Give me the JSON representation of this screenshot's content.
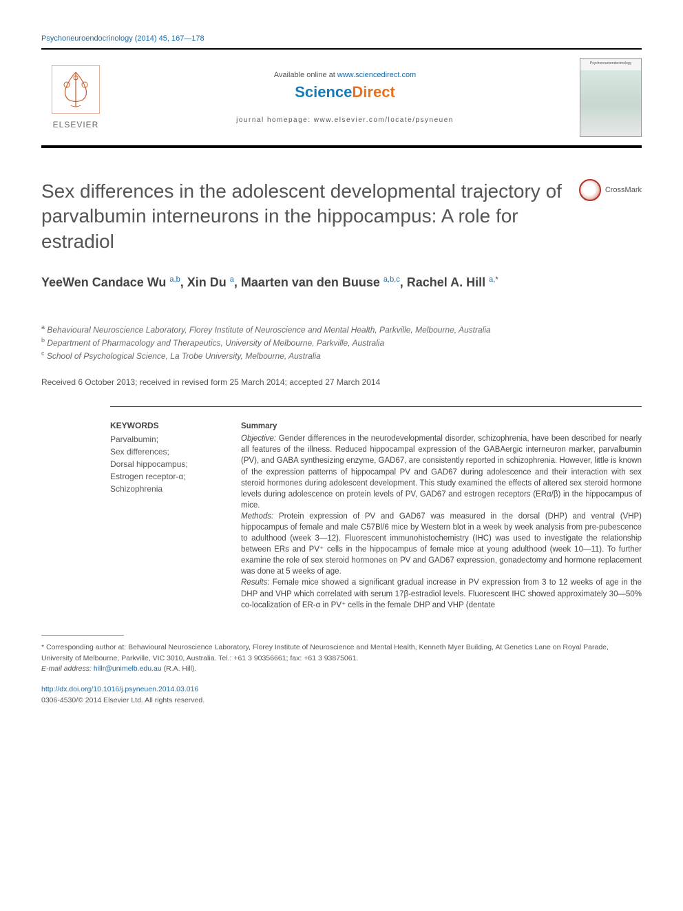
{
  "journal_ref": "Psychoneuroendocrinology (2014) 45, 167—178",
  "header": {
    "available_prefix": "Available online at ",
    "available_link": "www.sciencedirect.com",
    "sciencedirect": {
      "part1": "Science",
      "part2": "Direct"
    },
    "homepage_prefix": "journal homepage: ",
    "homepage_url": "www.elsevier.com/locate/psyneuen",
    "elsevier": "ELSEVIER",
    "cover_label": "Psychoneuroendocrinology"
  },
  "title": "Sex differences in the adolescent developmental trajectory of parvalbumin interneurons in the hippocampus: A role for estradiol",
  "crossmark_label": "CrossMark",
  "authors_html": "YeeWen Candace Wu <sup>a,b</sup>, Xin Du <sup>a</sup>, Maarten van den Buuse <sup>a,b,c</sup>, Rachel A. Hill <sup>a,</sup><sup class='sup-star'>*</sup>",
  "affiliations": [
    {
      "sup": "a",
      "text": "Behavioural Neuroscience Laboratory, Florey Institute of Neuroscience and Mental Health, Parkville, Melbourne, Australia"
    },
    {
      "sup": "b",
      "text": "Department of Pharmacology and Therapeutics, University of Melbourne, Parkville, Australia"
    },
    {
      "sup": "c",
      "text": "School of Psychological Science, La Trobe University, Melbourne, Australia"
    }
  ],
  "received": "Received 6 October 2013; received in revised form 25 March 2014; accepted 27 March 2014",
  "keywords": {
    "heading": "KEYWORDS",
    "items": [
      "Parvalbumin;",
      "Sex differences;",
      "Dorsal hippocampus;",
      "Estrogen receptor-α;",
      "Schizophrenia"
    ]
  },
  "summary": {
    "heading": "Summary",
    "objective_label": "Objective:",
    "objective": " Gender differences in the neurodevelopmental disorder, schizophrenia, have been described for nearly all features of the illness. Reduced hippocampal expression of the GABAergic interneuron marker, parvalbumin (PV), and GABA synthesizing enzyme, GAD67, are consistently reported in schizophrenia. However, little is known of the expression patterns of hippocampal PV and GAD67 during adolescence and their interaction with sex steroid hormones during adolescent development. This study examined the effects of altered sex steroid hormone levels during adolescence on protein levels of PV, GAD67 and estrogen receptors (ERα/β) in the hippocampus of mice.",
    "methods_label": "Methods:",
    "methods": " Protein expression of PV and GAD67 was measured in the dorsal (DHP) and ventral (VHP) hippocampus of female and male C57Bl/6 mice by Western blot in a week by week analysis from pre-pubescence to adulthood (week 3—12). Fluorescent immunohistochemistry (IHC) was used to investigate the relationship between ERs and PV⁺ cells in the hippocampus of female mice at young adulthood (week 10—11). To further examine the role of sex steroid hormones on PV and GAD67 expression, gonadectomy and hormone replacement was done at 5 weeks of age.",
    "results_label": "Results:",
    "results": " Female mice showed a significant gradual increase in PV expression from 3 to 12 weeks of age in the DHP and VHP which correlated with serum 17β-estradiol levels. Fluorescent IHC showed approximately 30—50% co-localization of ER-α in PV⁺ cells in the female DHP and VHP (dentate"
  },
  "footnote": {
    "corr": "* Corresponding author at: Behavioural Neuroscience Laboratory, Florey Institute of Neuroscience and Mental Health, Kenneth Myer Building, At Genetics Lane on Royal Parade, University of Melbourne, Parkville, VIC 3010, Australia. Tel.: +61 3 90356661; fax: +61 3 93875061.",
    "email_label": "E-mail address: ",
    "email": "hillr@unimelb.edu.au",
    "email_suffix": " (R.A. Hill)."
  },
  "doi": {
    "url": "http://dx.doi.org/10.1016/j.psyneuen.2014.03.016",
    "issn_line": "0306-4530/© 2014 Elsevier Ltd. All rights reserved."
  },
  "colors": {
    "link": "#1a6ca8",
    "sd_blue": "#187bb3",
    "sd_orange": "#e9711c",
    "title_gray": "#555555",
    "text": "#444444",
    "border": "#000000"
  }
}
